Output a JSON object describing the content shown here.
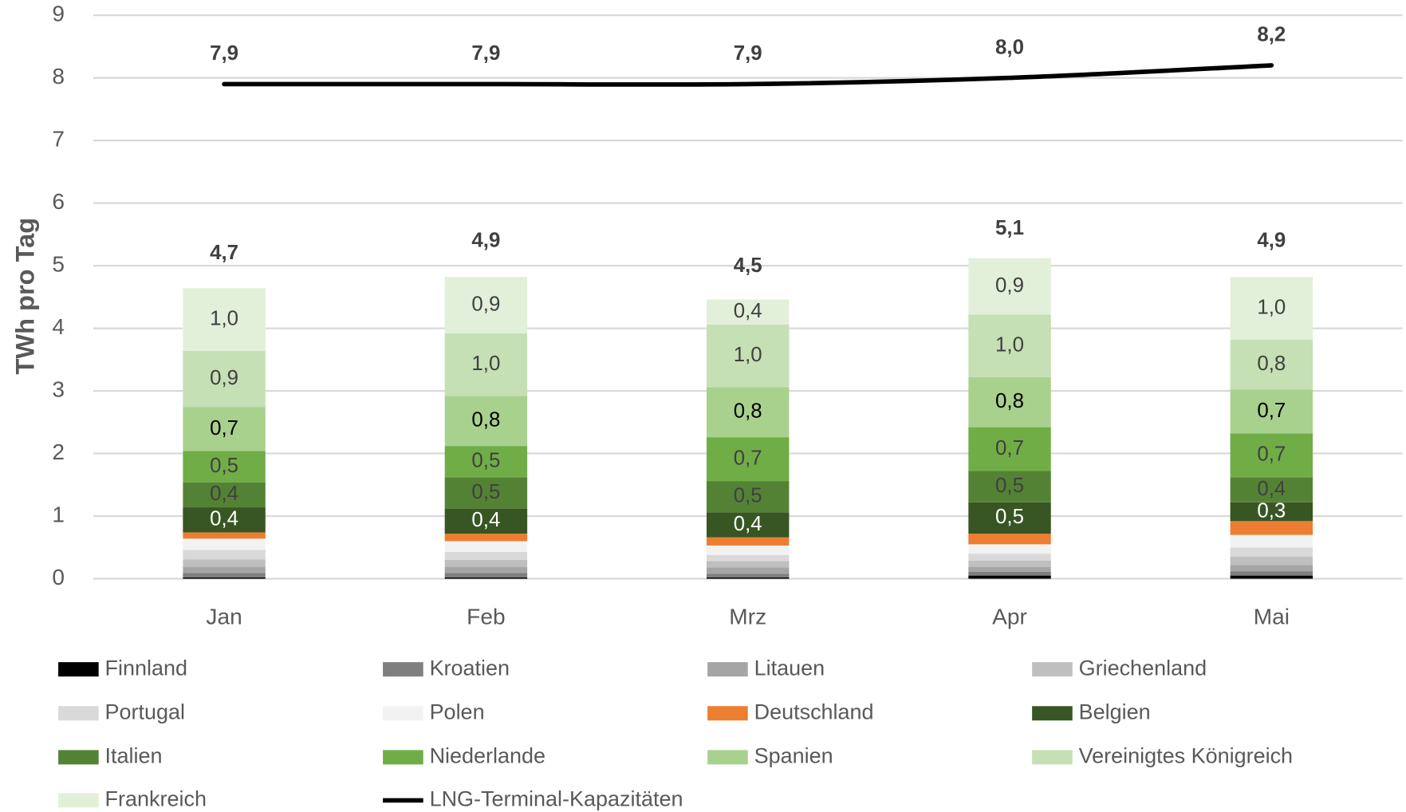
{
  "chart_data": {
    "type": "bar",
    "stacked": true,
    "y_label": "TWh pro Tag",
    "categories": [
      "Jan",
      "Feb",
      "Mrz",
      "Apr",
      "Mai"
    ],
    "ylim": [
      0,
      9
    ],
    "yticks": [
      0,
      1,
      2,
      3,
      4,
      5,
      6,
      7,
      8,
      9
    ],
    "grid": true,
    "legend": "bottom",
    "series": [
      {
        "name": "Finnland",
        "color": "#000000",
        "values": [
          0.02,
          0.02,
          0.02,
          0.05,
          0.05
        ]
      },
      {
        "name": "Kroatien",
        "color": "#7f7f7f",
        "values": [
          0.07,
          0.07,
          0.06,
          0.06,
          0.07
        ]
      },
      {
        "name": "Litauen",
        "color": "#a5a5a5",
        "values": [
          0.1,
          0.1,
          0.1,
          0.08,
          0.1
        ]
      },
      {
        "name": "Griechenland",
        "color": "#bfbfbf",
        "values": [
          0.12,
          0.11,
          0.1,
          0.1,
          0.13
        ]
      },
      {
        "name": "Portugal",
        "color": "#d9d9d9",
        "values": [
          0.15,
          0.13,
          0.1,
          0.11,
          0.15
        ]
      },
      {
        "name": "Polen",
        "color": "#f2f2f2",
        "values": [
          0.18,
          0.17,
          0.15,
          0.15,
          0.2
        ]
      },
      {
        "name": "Deutschland",
        "color": "#ed7d31",
        "values": [
          0.1,
          0.12,
          0.13,
          0.17,
          0.22
        ]
      },
      {
        "name": "Belgien",
        "color": "#375623",
        "label_color": "#ffffff",
        "values": [
          0.4,
          0.4,
          0.4,
          0.5,
          0.3
        ],
        "value_labels": [
          "0,4",
          "0,4",
          "0,4",
          "0,5",
          "0,3"
        ]
      },
      {
        "name": "Italien",
        "color": "#548235",
        "label_color": "#404040",
        "values": [
          0.4,
          0.5,
          0.5,
          0.5,
          0.4
        ],
        "value_labels": [
          "0,4",
          "0,5",
          "0,5",
          "0,5",
          "0,4"
        ]
      },
      {
        "name": "Niederlande",
        "color": "#70ad47",
        "label_color": "#404040",
        "values": [
          0.5,
          0.5,
          0.7,
          0.7,
          0.7
        ],
        "value_labels": [
          "0,5",
          "0,5",
          "0,7",
          "0,7",
          "0,7"
        ]
      },
      {
        "name": "Spanien",
        "color": "#a9d18e",
        "label_color": "#000000",
        "values": [
          0.7,
          0.8,
          0.8,
          0.8,
          0.7
        ],
        "value_labels": [
          "0,7",
          "0,8",
          "0,8",
          "0,8",
          "0,7"
        ]
      },
      {
        "name": "Vereinigtes Königreich",
        "color": "#c5e0b4",
        "label_color": "#404040",
        "values": [
          0.9,
          1.0,
          1.0,
          1.0,
          0.8
        ],
        "value_labels": [
          "0,9",
          "1,0",
          "1,0",
          "1,0",
          "0,8"
        ]
      },
      {
        "name": "Frankreich",
        "color": "#e2f0d9",
        "label_color": "#404040",
        "values": [
          1.0,
          0.9,
          0.4,
          0.9,
          1.0
        ],
        "value_labels": [
          "1,0",
          "0,9",
          "0,4",
          "0,9",
          "1,0"
        ]
      }
    ],
    "totals": [
      4.7,
      4.9,
      4.5,
      5.1,
      4.9
    ],
    "total_labels": [
      "4,7",
      "4,9",
      "4,5",
      "5,1",
      "4,9"
    ],
    "line": {
      "name": "LNG-Terminal-Kapazitäten",
      "color": "#000000",
      "values": [
        7.9,
        7.9,
        7.9,
        8.0,
        8.2
      ],
      "value_labels": [
        "7,9",
        "7,9",
        "7,9",
        "8,0",
        "8,2"
      ]
    }
  }
}
